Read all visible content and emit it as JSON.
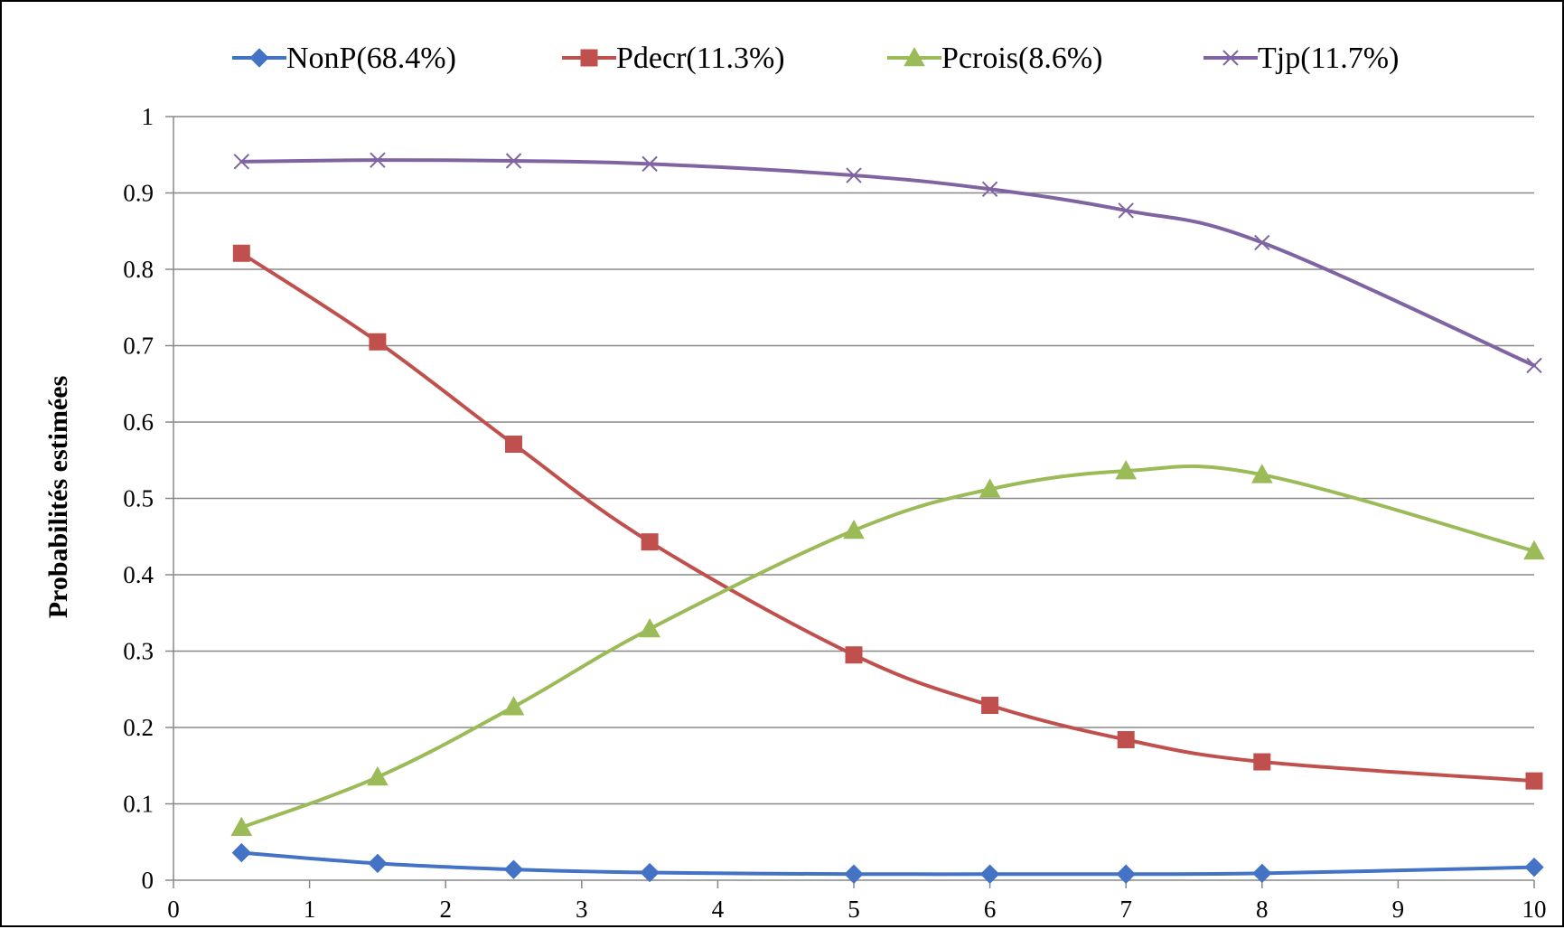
{
  "chart_data": {
    "type": "line",
    "title": "",
    "xlabel": "",
    "ylabel": "Probabilités estimées",
    "xlim": [
      0,
      10
    ],
    "ylim": [
      0,
      1
    ],
    "x_ticks": [
      "0",
      "1",
      "2",
      "3",
      "4",
      "5",
      "6",
      "7",
      "8",
      "9",
      "10"
    ],
    "y_ticks": [
      "0",
      "0.1",
      "0.2",
      "0.3",
      "0.4",
      "0.5",
      "0.6",
      "0.7",
      "0.8",
      "0.9",
      "1"
    ],
    "grid": "horizontal",
    "legend_position": "top",
    "x": [
      0.5,
      1.5,
      2.5,
      3.5,
      5,
      6,
      7,
      8,
      10
    ],
    "series": [
      {
        "name": "NonP(68.4%)",
        "color": "#4472C4",
        "marker": "diamond",
        "values": [
          0.036,
          0.022,
          0.014,
          0.01,
          0.008,
          0.008,
          0.008,
          0.009,
          0.017
        ]
      },
      {
        "name": "Pdecr(11.3%)",
        "color": "#C0504D",
        "marker": "square",
        "values": [
          0.821,
          0.705,
          0.571,
          0.443,
          0.295,
          0.229,
          0.184,
          0.155,
          0.13
        ]
      },
      {
        "name": "Pcrois(8.6%)",
        "color": "#9BBB59",
        "marker": "triangle",
        "values": [
          0.069,
          0.135,
          0.227,
          0.329,
          0.458,
          0.512,
          0.536,
          0.531,
          0.431
        ]
      },
      {
        "name": "Tjp(11.7%)",
        "color": "#8064A2",
        "marker": "x",
        "values": [
          0.941,
          0.943,
          0.942,
          0.938,
          0.923,
          0.905,
          0.877,
          0.835,
          0.674
        ]
      }
    ]
  }
}
